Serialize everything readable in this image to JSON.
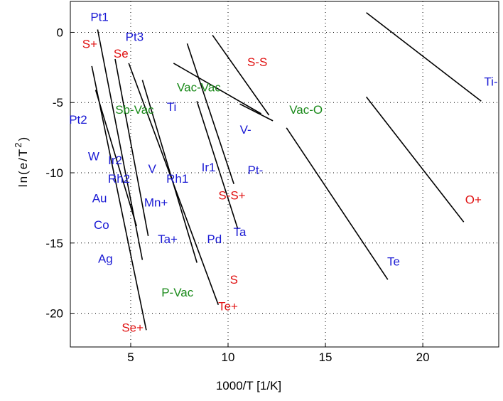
{
  "chart_data": {
    "type": "line",
    "xlabel": "1000/T  [1/K]",
    "ylabel_parts": {
      "prefix": "ln(e/T",
      "exponent": "2",
      "suffix": ")"
    },
    "xlim": [
      1.9,
      23.9
    ],
    "ylim": [
      -22.4,
      2.2
    ],
    "x_ticks": [
      5,
      10,
      15,
      20
    ],
    "x_tick_labels": [
      "5",
      "10",
      "15",
      "20"
    ],
    "y_ticks": [
      0,
      -5,
      -10,
      -15,
      -20
    ],
    "y_tick_labels": [
      "0",
      "-5",
      "-10",
      "-15",
      "-20"
    ],
    "grid": "dotted",
    "colors": {
      "defect": "#1a1ad4",
      "charged": "#e01010",
      "vacancy": "#1a8a1a",
      "line": "#000000"
    },
    "series": [
      {
        "points": [
          [
            3.3,
            0.2
          ],
          [
            5.6,
            -16.2
          ]
        ]
      },
      {
        "points": [
          [
            3.0,
            -2.4
          ],
          [
            5.8,
            -21.2
          ]
        ]
      },
      {
        "points": [
          [
            3.2,
            -4.1
          ],
          [
            5.3,
            -13.8
          ]
        ]
      },
      {
        "points": [
          [
            4.2,
            -1.9
          ],
          [
            5.9,
            -14.5
          ]
        ]
      },
      {
        "points": [
          [
            5.6,
            -3.4
          ],
          [
            8.4,
            -16.4
          ]
        ]
      },
      {
        "points": [
          [
            7.9,
            -0.8
          ],
          [
            10.3,
            -10.8
          ]
        ]
      },
      {
        "points": [
          [
            10.6,
            -5.1
          ],
          [
            12.3,
            -6.3
          ]
        ]
      },
      {
        "points": [
          [
            17.1,
            1.4
          ],
          [
            23.0,
            -4.9
          ]
        ]
      },
      {
        "points": [
          [
            17.1,
            -4.6
          ],
          [
            22.1,
            -13.5
          ]
        ]
      },
      {
        "points": [
          [
            13.0,
            -6.8
          ],
          [
            18.2,
            -17.6
          ]
        ]
      },
      {
        "points": [
          [
            4.9,
            -2.2
          ],
          [
            9.5,
            -19.4
          ]
        ]
      },
      {
        "points": [
          [
            8.4,
            -4.9
          ],
          [
            10.5,
            -14.0
          ]
        ]
      },
      {
        "points": [
          [
            9.2,
            -0.2
          ],
          [
            12.1,
            -5.9
          ]
        ]
      },
      {
        "points": [
          [
            7.2,
            -2.2
          ],
          [
            11.7,
            -5.8
          ]
        ]
      }
    ],
    "labels": [
      {
        "text": "Pt1",
        "x": 3.4,
        "y": 1.1,
        "group": "defect"
      },
      {
        "text": "Pt3",
        "x": 5.2,
        "y": -0.3,
        "group": "defect"
      },
      {
        "text": "S+",
        "x": 2.9,
        "y": -0.8,
        "group": "charged"
      },
      {
        "text": "Se",
        "x": 4.5,
        "y": -1.5,
        "group": "charged"
      },
      {
        "text": "S-S",
        "x": 11.5,
        "y": -2.1,
        "group": "charged"
      },
      {
        "text": "Ti-",
        "x": 23.5,
        "y": -3.5,
        "group": "defect"
      },
      {
        "text": "Vac-Vac",
        "x": 8.5,
        "y": -3.9,
        "group": "vacancy"
      },
      {
        "text": "Pt2",
        "x": 2.3,
        "y": -6.2,
        "group": "defect"
      },
      {
        "text": "Sb-Vac",
        "x": 5.2,
        "y": -5.5,
        "group": "vacancy"
      },
      {
        "text": "Ti",
        "x": 7.1,
        "y": -5.3,
        "group": "defect"
      },
      {
        "text": "Vac-O",
        "x": 14.0,
        "y": -5.5,
        "group": "vacancy"
      },
      {
        "text": "V-",
        "x": 10.9,
        "y": -6.9,
        "group": "defect"
      },
      {
        "text": "W",
        "x": 3.1,
        "y": -8.8,
        "group": "defect"
      },
      {
        "text": "Ir2",
        "x": 4.2,
        "y": -9.1,
        "group": "defect"
      },
      {
        "text": "Ir1",
        "x": 9.0,
        "y": -9.6,
        "group": "defect"
      },
      {
        "text": "Pt-",
        "x": 11.4,
        "y": -9.8,
        "group": "defect"
      },
      {
        "text": "V",
        "x": 6.1,
        "y": -9.7,
        "group": "defect"
      },
      {
        "text": "Rh2",
        "x": 4.4,
        "y": -10.4,
        "group": "defect"
      },
      {
        "text": "Rh1",
        "x": 7.4,
        "y": -10.4,
        "group": "defect"
      },
      {
        "text": "Au",
        "x": 3.4,
        "y": -11.8,
        "group": "defect"
      },
      {
        "text": "S-S+",
        "x": 10.2,
        "y": -11.6,
        "group": "charged"
      },
      {
        "text": "O+",
        "x": 22.6,
        "y": -11.9,
        "group": "charged"
      },
      {
        "text": "Mn+",
        "x": 6.3,
        "y": -12.1,
        "group": "defect"
      },
      {
        "text": "Co",
        "x": 3.5,
        "y": -13.7,
        "group": "defect"
      },
      {
        "text": "Ta",
        "x": 10.6,
        "y": -14.2,
        "group": "defect"
      },
      {
        "text": "Ta+",
        "x": 6.9,
        "y": -14.7,
        "group": "defect"
      },
      {
        "text": "Pd",
        "x": 9.3,
        "y": -14.7,
        "group": "defect"
      },
      {
        "text": "Ag",
        "x": 3.7,
        "y": -16.1,
        "group": "defect"
      },
      {
        "text": "Te",
        "x": 18.5,
        "y": -16.3,
        "group": "defect"
      },
      {
        "text": "S",
        "x": 10.3,
        "y": -17.6,
        "group": "charged"
      },
      {
        "text": "P-Vac",
        "x": 7.4,
        "y": -18.5,
        "group": "vacancy"
      },
      {
        "text": "Te+",
        "x": 10.0,
        "y": -19.5,
        "group": "charged"
      },
      {
        "text": "Se+",
        "x": 5.1,
        "y": -21.0,
        "group": "charged"
      }
    ]
  }
}
